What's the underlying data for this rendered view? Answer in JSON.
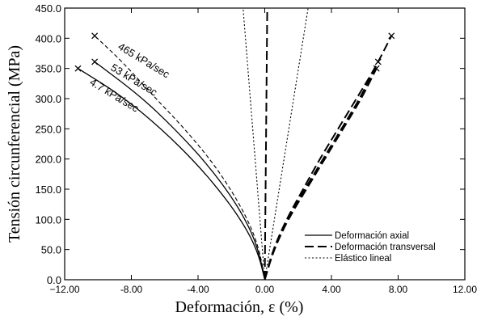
{
  "chart_data": {
    "type": "line",
    "title": "",
    "xlabel": "Deformación, ε  (%)",
    "ylabel": "Tensión circunferencial (MPa)",
    "xlim": [
      -12,
      12
    ],
    "ylim": [
      0,
      450
    ],
    "xticks": [
      -12,
      -8,
      -4,
      0,
      4,
      8,
      12
    ],
    "xtick_labels": [
      "−12.00",
      "-8.00",
      "-4.00",
      "0.00",
      "4.00",
      "8.00",
      "12.00"
    ],
    "yticks": [
      0,
      50,
      100,
      150,
      200,
      250,
      300,
      350,
      400,
      450
    ],
    "ytick_labels": [
      "0.0",
      "50.0",
      "100.0",
      "150.0",
      "200.0",
      "250.0",
      "300.0",
      "350.0",
      "400.0",
      "450.0"
    ],
    "grid": false,
    "legend": {
      "position": "bottom-right",
      "entries": [
        {
          "label": "Deformación axial",
          "style": "solid"
        },
        {
          "label": "Deformación transversal",
          "style": "dashed"
        },
        {
          "label": "Elástico lineal",
          "style": "dotted"
        }
      ]
    },
    "series": [
      {
        "name": "465 kPa/sec",
        "points": [
          [
            0,
            0
          ],
          [
            -0.25,
            40
          ],
          [
            -0.7,
            80
          ],
          [
            -1.6,
            130
          ],
          [
            -3.0,
            190
          ],
          [
            -4.8,
            250
          ],
          [
            -6.7,
            305
          ],
          [
            -8.5,
            360
          ],
          [
            -10.2,
            404
          ]
        ],
        "end_marker": "x"
      },
      {
        "name": "53 kPa/sec",
        "points": [
          [
            0,
            0
          ],
          [
            -0.3,
            40
          ],
          [
            -0.8,
            80
          ],
          [
            -1.8,
            130
          ],
          [
            -3.4,
            190
          ],
          [
            -5.4,
            250
          ],
          [
            -7.5,
            305
          ],
          [
            -10.2,
            361
          ]
        ],
        "end_marker": "x"
      },
      {
        "name": "4.7 kPa/sec",
        "points": [
          [
            0,
            0
          ],
          [
            -0.35,
            40
          ],
          [
            -1.0,
            80
          ],
          [
            -2.2,
            130
          ],
          [
            -4.0,
            190
          ],
          [
            -6.2,
            250
          ],
          [
            -8.6,
            305
          ],
          [
            -11.2,
            350
          ]
        ],
        "end_marker": "x"
      },
      {
        "name": "465 kPa/sec",
        "points": [
          [
            0,
            0
          ],
          [
            0.5,
            50
          ],
          [
            1.3,
            100
          ],
          [
            2.3,
            150
          ],
          [
            3.3,
            200
          ],
          [
            4.4,
            250
          ],
          [
            5.5,
            300
          ],
          [
            6.6,
            350
          ],
          [
            7.6,
            404
          ]
        ],
        "end_marker": "x"
      },
      {
        "name": "53 kPa/sec",
        "points": [
          [
            0,
            0
          ],
          [
            0.5,
            50
          ],
          [
            1.35,
            100
          ],
          [
            2.4,
            150
          ],
          [
            3.5,
            200
          ],
          [
            4.6,
            250
          ],
          [
            5.7,
            300
          ],
          [
            6.8,
            361
          ]
        ],
        "end_marker": "x"
      },
      {
        "name": "4.7 kPa/sec",
        "points": [
          [
            0,
            0
          ],
          [
            0.55,
            50
          ],
          [
            1.4,
            100
          ],
          [
            2.5,
            150
          ],
          [
            3.6,
            200
          ],
          [
            4.7,
            250
          ],
          [
            5.8,
            300
          ],
          [
            6.7,
            350
          ]
        ],
        "end_marker": "x"
      },
      {
        "name": "Elástico lineal",
        "points": [
          [
            0,
            0
          ],
          [
            -1.3,
            450
          ]
        ]
      },
      {
        "name": "Elástico lineal",
        "points": [
          [
            0,
            0
          ],
          [
            2.6,
            450
          ]
        ]
      },
      {
        "name": "Deformación transversal",
        "points": [
          [
            0,
            0
          ],
          [
            0.15,
            450
          ]
        ]
      }
    ],
    "annotations": [
      "465 kPa/sec",
      "53 kPa/sec",
      "4.7 kPa/sec"
    ]
  }
}
